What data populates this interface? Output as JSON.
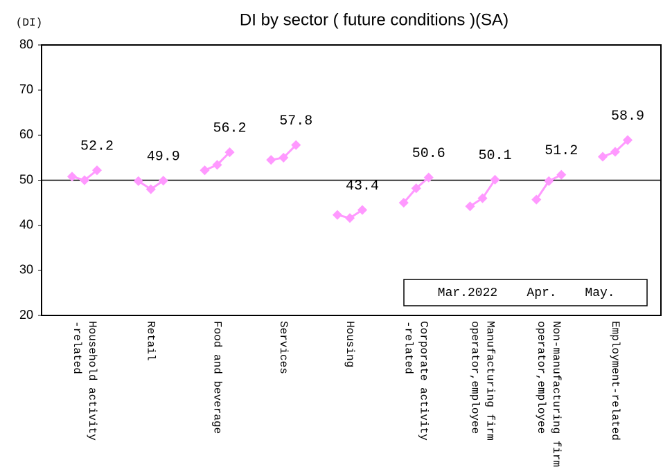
{
  "chart_data": {
    "type": "line",
    "title": "DI by sector ( future conditions )(SA)",
    "y_label": "(DI)",
    "categories": [
      [
        "Household activity",
        "-related"
      ],
      [
        "Retail"
      ],
      [
        "Food and beverage"
      ],
      [
        "Services"
      ],
      [
        "Housing"
      ],
      [
        "Corporate activity",
        "-related"
      ],
      [
        "Manufacturing firm",
        "operator,employee"
      ],
      [
        "Non-manufacturing firm",
        "operator,employee"
      ],
      [
        "Employment-related"
      ]
    ],
    "series": [
      {
        "name": "Mar.2022",
        "color": "#ff99ff",
        "values": [
          50.8,
          49.8,
          52.2,
          54.5,
          42.3,
          45.0,
          44.2,
          45.7,
          55.2
        ]
      },
      {
        "name": "Apr.",
        "color": "#ff99ff",
        "values": [
          50.0,
          48.0,
          53.4,
          55.0,
          41.6,
          48.2,
          46.0,
          49.8,
          56.3
        ]
      },
      {
        "name": "May.",
        "color": "#ff99ff",
        "values": [
          52.2,
          49.9,
          56.2,
          57.8,
          43.4,
          50.6,
          50.1,
          51.2,
          58.9
        ],
        "data_labels": true
      }
    ],
    "ylim": [
      20,
      80
    ],
    "yticks": [
      20,
      30,
      40,
      50,
      60,
      70,
      80
    ],
    "reference_line": 50,
    "grid": false,
    "legend": "lower right"
  }
}
